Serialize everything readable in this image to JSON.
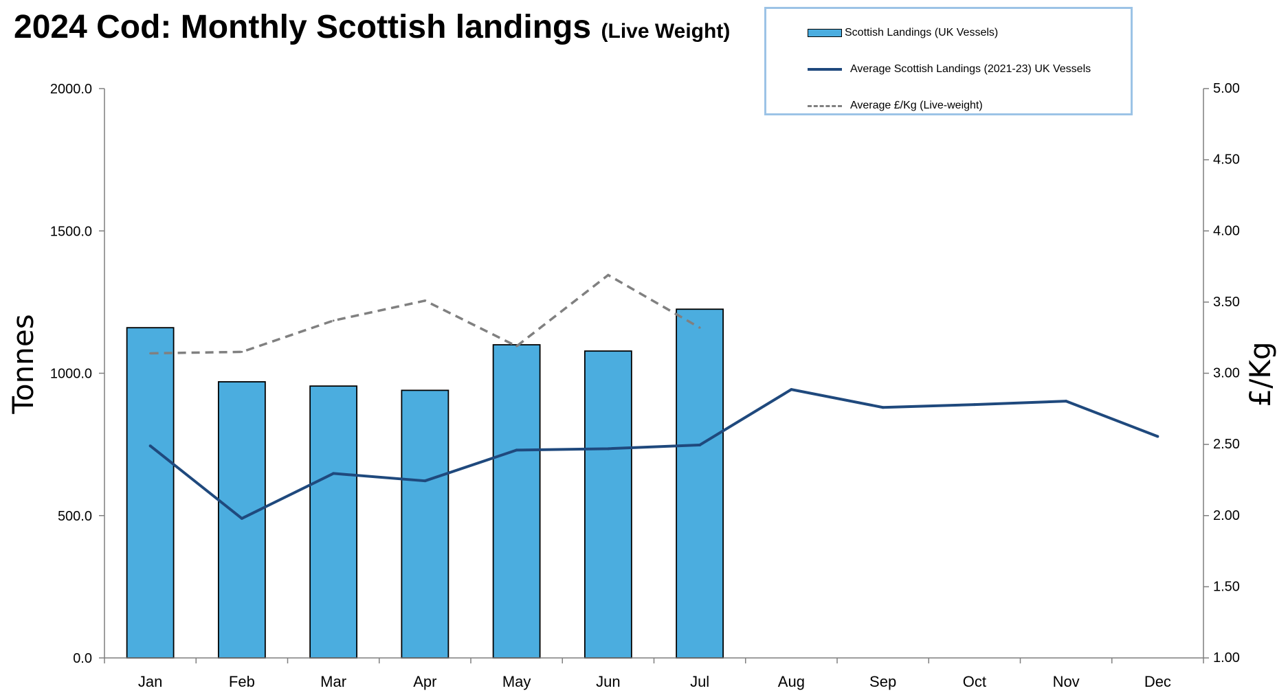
{
  "chart_data": {
    "type": "bar",
    "title": "2024 Cod: Monthly Scottish landings",
    "subtitle": "(Live Weight)",
    "ylabel": "Tonnes",
    "y2label": "£/Kg",
    "ylim": [
      0,
      2000
    ],
    "y2lim": [
      1.0,
      5.0
    ],
    "yticks": [
      "0.0",
      "500.0",
      "1000.0",
      "1500.0",
      "2000.0"
    ],
    "y2ticks": [
      "1.00",
      "1.50",
      "2.00",
      "2.50",
      "3.00",
      "3.50",
      "4.00",
      "4.50",
      "5.00"
    ],
    "categories": [
      "Jan",
      "Feb",
      "Mar",
      "Apr",
      "May",
      "Jun",
      "Jul",
      "Aug",
      "Sep",
      "Oct",
      "Nov",
      "Dec"
    ],
    "grid": false,
    "legend_position": "top-right",
    "series": [
      {
        "name": "Scottish Landings (UK Vessels)",
        "type": "bar",
        "axis": "left",
        "color": "#4baddf",
        "values": [
          1160,
          970,
          955,
          940,
          1100,
          1078,
          1225,
          null,
          null,
          null,
          null,
          null
        ]
      },
      {
        "name": "Average Scottish Landings  (2021-23) UK Vessels",
        "type": "line",
        "axis": "left",
        "color": "#1f497d",
        "values": [
          745,
          490,
          648,
          622,
          730,
          735,
          748,
          943,
          880,
          890,
          902,
          778
        ]
      },
      {
        "name": "Average £/Kg (Live-weight)",
        "type": "line-dashed",
        "axis": "right",
        "color": "#808080",
        "values": [
          3.14,
          3.15,
          3.37,
          3.51,
          3.19,
          3.69,
          3.32,
          null,
          null,
          null,
          null,
          null
        ]
      }
    ]
  }
}
